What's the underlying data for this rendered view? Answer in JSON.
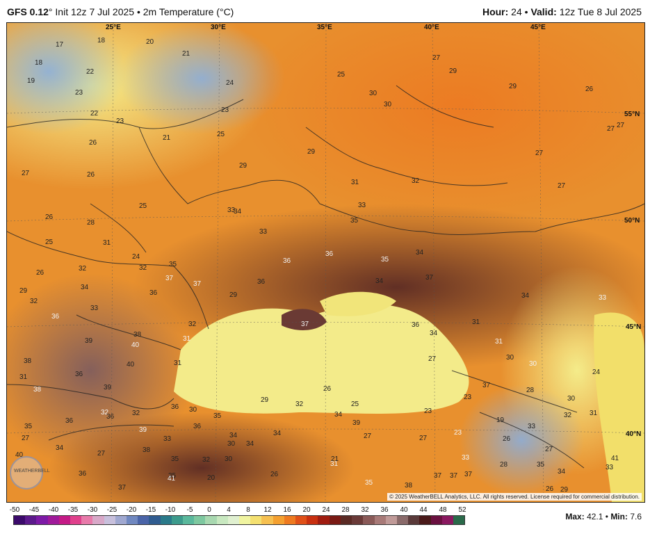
{
  "header": {
    "model": "GFS 0.12",
    "degree": "°",
    "rest": "Init 12z 7 Jul 2025 • 2m Temperature (°C)",
    "hour_label": "Hour:",
    "hour_value": "24",
    "valid_label": "Valid:",
    "valid_value": "12z Tue 8 Jul 2025"
  },
  "grid_labels": {
    "lon": [
      "25°E",
      "30°E",
      "35°E",
      "40°E",
      "45°E"
    ],
    "lat": [
      "55°N",
      "50°N",
      "45°N",
      "40°N"
    ]
  },
  "copyright": "© 2025 WeatherBELL Analytics, LLC. All rights reserved. License required for commercial distribution.",
  "logo_text": "WEATHERBELL",
  "colorbar": {
    "ticks": [
      "-50",
      "-45",
      "-40",
      "-35",
      "-30",
      "-25",
      "-20",
      "-15",
      "-10",
      "-5",
      "0",
      "4",
      "8",
      "12",
      "16",
      "20",
      "24",
      "28",
      "32",
      "36",
      "40",
      "44",
      "48",
      "52"
    ],
    "colors": [
      "#3b0a6b",
      "#5c1a8c",
      "#7d1aa6",
      "#a01a9a",
      "#c41a86",
      "#e0408c",
      "#e87aaa",
      "#d8a8c8",
      "#c8c0dc",
      "#a0a8d0",
      "#7088c0",
      "#4a64a8",
      "#305c90",
      "#2a7a8a",
      "#3c9a8c",
      "#5ab89c",
      "#7ec8a0",
      "#a8d8b0",
      "#c8e8c0",
      "#e0f0d0",
      "#f0f4a0",
      "#f4e070",
      "#f6c050",
      "#f4a030",
      "#ee7a20",
      "#e05018",
      "#c83010",
      "#a01c10",
      "#7a1a14",
      "#5a2a24",
      "#6a3a38",
      "#8a5a58",
      "#a87a78",
      "#c09a98",
      "#8a6a6a",
      "#5a3a3a",
      "#4a1a1a",
      "#6a1040",
      "#8a1860",
      "#2a6a4a"
    ]
  },
  "stats": {
    "max_label": "Max:",
    "max_value": "42.1",
    "sep": "•",
    "min_label": "Min:",
    "min_value": "7.6"
  },
  "map_labels": [
    {
      "t": "17"
    },
    {
      "t": "18"
    },
    {
      "t": "20"
    },
    {
      "t": "21"
    },
    {
      "t": "18"
    },
    {
      "t": "22"
    },
    {
      "t": "19"
    },
    {
      "t": "23"
    },
    {
      "t": "24"
    },
    {
      "t": "22"
    },
    {
      "t": "23"
    },
    {
      "t": "23"
    },
    {
      "t": "26"
    },
    {
      "t": "21"
    },
    {
      "t": "25"
    },
    {
      "t": "27"
    },
    {
      "t": "26"
    },
    {
      "t": "29"
    },
    {
      "t": "29"
    },
    {
      "t": "25"
    },
    {
      "t": "25"
    },
    {
      "t": "30"
    },
    {
      "t": "30"
    },
    {
      "t": "27"
    },
    {
      "t": "29"
    },
    {
      "t": "29"
    },
    {
      "t": "26"
    },
    {
      "t": "27"
    },
    {
      "t": "27"
    },
    {
      "t": "27"
    },
    {
      "t": "31"
    },
    {
      "t": "32"
    },
    {
      "t": "27"
    },
    {
      "t": "26"
    },
    {
      "t": "28"
    },
    {
      "t": "33"
    },
    {
      "t": "34"
    },
    {
      "t": "33"
    },
    {
      "t": "35"
    },
    {
      "t": "25"
    },
    {
      "t": "31"
    },
    {
      "t": "33"
    },
    {
      "t": "24"
    },
    {
      "t": "32"
    },
    {
      "t": "35"
    },
    {
      "t": "36"
    },
    {
      "t": "36"
    },
    {
      "t": "35"
    },
    {
      "t": "34"
    },
    {
      "t": "26"
    },
    {
      "t": "32"
    },
    {
      "t": "37"
    },
    {
      "t": "37"
    },
    {
      "t": "36"
    },
    {
      "t": "34"
    },
    {
      "t": "37"
    },
    {
      "t": "29"
    },
    {
      "t": "34"
    },
    {
      "t": "32"
    },
    {
      "t": "33"
    },
    {
      "t": "36"
    },
    {
      "t": "29"
    },
    {
      "t": "34"
    },
    {
      "t": "33"
    },
    {
      "t": "36"
    },
    {
      "t": "37"
    },
    {
      "t": "36"
    },
    {
      "t": "31"
    },
    {
      "t": "32"
    },
    {
      "t": "34"
    },
    {
      "t": "39"
    },
    {
      "t": "38"
    },
    {
      "t": "31"
    },
    {
      "t": "31"
    },
    {
      "t": "40"
    },
    {
      "t": "38"
    },
    {
      "t": "31"
    },
    {
      "t": "40"
    },
    {
      "t": "27"
    },
    {
      "t": "30"
    },
    {
      "t": "30"
    },
    {
      "t": "24"
    },
    {
      "t": "31"
    },
    {
      "t": "36"
    },
    {
      "t": "39"
    },
    {
      "t": "26"
    },
    {
      "t": "37"
    },
    {
      "t": "38"
    },
    {
      "t": "28"
    },
    {
      "t": "29"
    },
    {
      "t": "32"
    },
    {
      "t": "25"
    },
    {
      "t": "23"
    },
    {
      "t": "23"
    },
    {
      "t": "30"
    },
    {
      "t": "36"
    },
    {
      "t": "32"
    },
    {
      "t": "32"
    },
    {
      "t": "35"
    },
    {
      "t": "35"
    },
    {
      "t": "30"
    },
    {
      "t": "36"
    },
    {
      "t": "34"
    },
    {
      "t": "19"
    },
    {
      "t": "32"
    },
    {
      "t": "27"
    },
    {
      "t": "36"
    },
    {
      "t": "39"
    },
    {
      "t": "36"
    },
    {
      "t": "34"
    },
    {
      "t": "34"
    },
    {
      "t": "34"
    },
    {
      "t": "30"
    },
    {
      "t": "33"
    },
    {
      "t": "39"
    },
    {
      "t": "27"
    },
    {
      "t": "27"
    },
    {
      "t": "23"
    },
    {
      "t": "26"
    },
    {
      "t": "31"
    },
    {
      "t": "40"
    },
    {
      "t": "34"
    },
    {
      "t": "27"
    },
    {
      "t": "38"
    },
    {
      "t": "35"
    },
    {
      "t": "33"
    },
    {
      "t": "32"
    },
    {
      "t": "30"
    },
    {
      "t": "21"
    },
    {
      "t": "27"
    },
    {
      "t": "28"
    },
    {
      "t": "35"
    },
    {
      "t": "41"
    },
    {
      "t": "31"
    },
    {
      "t": "33"
    },
    {
      "t": "33"
    },
    {
      "t": "20"
    },
    {
      "t": "35"
    },
    {
      "t": "26"
    },
    {
      "t": "34"
    },
    {
      "t": "36"
    },
    {
      "t": "41"
    },
    {
      "t": "35"
    },
    {
      "t": "38"
    },
    {
      "t": "37"
    },
    {
      "t": "37"
    },
    {
      "t": "37"
    },
    {
      "t": "37"
    },
    {
      "t": "29"
    },
    {
      "t": "26"
    },
    {
      "t": "32"
    }
  ]
}
